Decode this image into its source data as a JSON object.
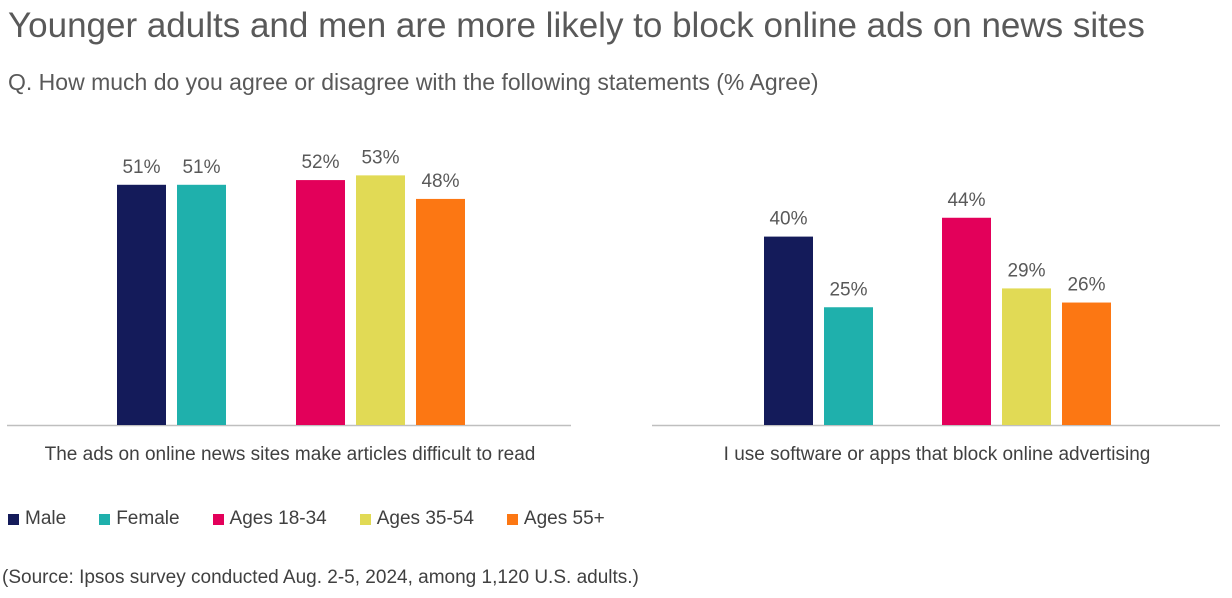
{
  "title": "Younger adults and men are more likely to block online ads on news sites",
  "subtitle": "Q. How much do you agree or disagree with the following statements (% Agree)",
  "source": "(Source: Ipsos survey conducted Aug. 2-5, 2024, among 1,120 U.S. adults.)",
  "chart_data": {
    "type": "bar",
    "title": "Younger adults and men are more likely to block online ads on news sites",
    "subtitle": "Q. How much do you agree or disagree with the following statements (% Agree)",
    "xlabel": "",
    "ylabel": "% Agree",
    "ylim": [
      0,
      55
    ],
    "grid": false,
    "legend_position": "bottom-left",
    "categories": [
      "The ads on online news sites make articles difficult to read",
      "I use software or apps that block online advertising"
    ],
    "series": [
      {
        "name": "Male",
        "color": "#141B5A",
        "values": [
          51,
          40
        ]
      },
      {
        "name": "Female",
        "color": "#1FB0AC",
        "values": [
          51,
          25
        ]
      },
      {
        "name": "Ages 18-34",
        "color": "#E3005A",
        "values": [
          52,
          44
        ]
      },
      {
        "name": "Ages 35-54",
        "color": "#E1DA55",
        "values": [
          53,
          29
        ]
      },
      {
        "name": "Ages 55+",
        "color": "#FC7713",
        "values": [
          48,
          26
        ]
      }
    ],
    "data_label_format": "{v}%"
  }
}
